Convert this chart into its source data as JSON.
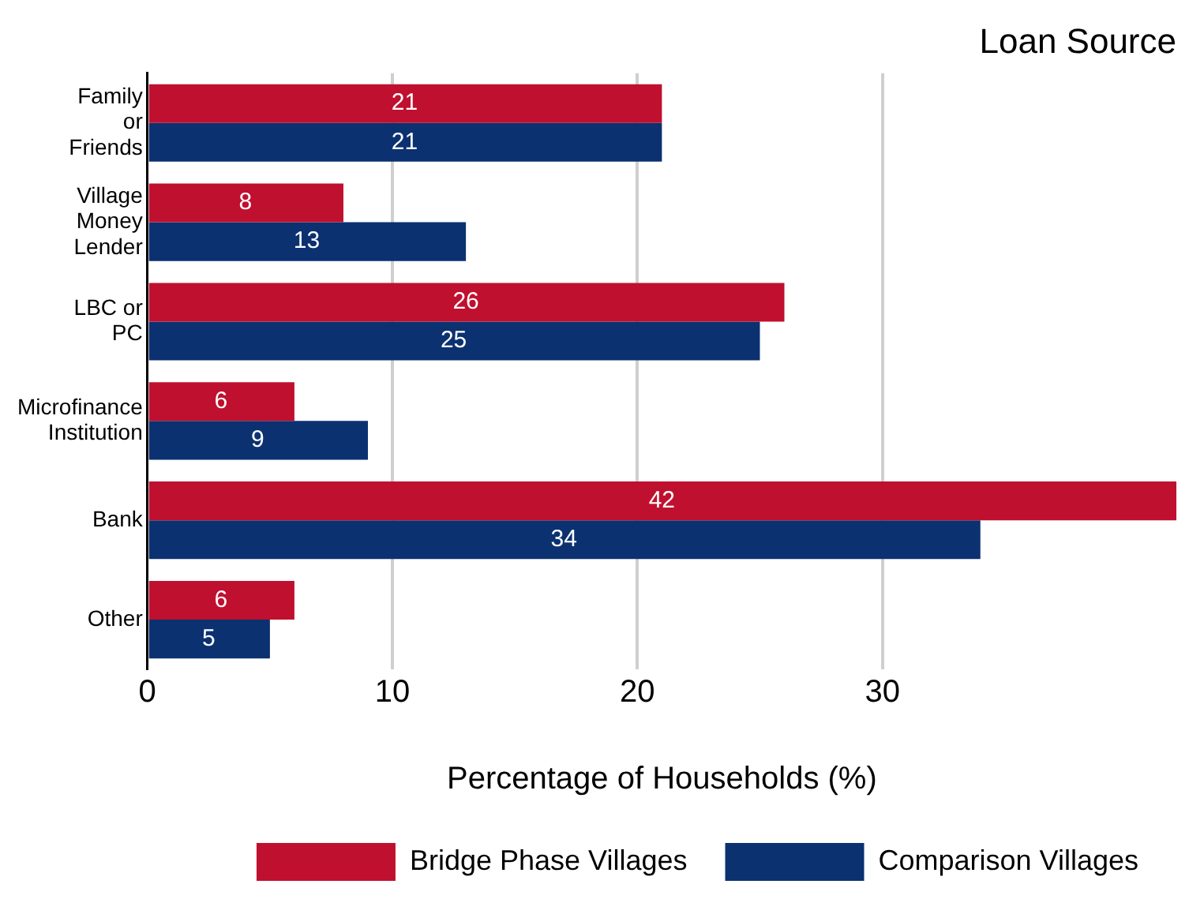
{
  "chart_data": {
    "type": "bar",
    "orientation": "horizontal",
    "title": "Loan Source",
    "xlabel": "Percentage of Households (%)",
    "categories": [
      "Family or Friends",
      "Village Money Lender",
      "LBC or PC",
      "Microfinance Institution",
      "Bank",
      "Other"
    ],
    "series": [
      {
        "name": "Bridge Phase Villages",
        "color": "#c0102f",
        "values": [
          21,
          8,
          26,
          6,
          42,
          6
        ]
      },
      {
        "name": "Comparison Villages",
        "color": "#0b3170",
        "values": [
          21,
          13,
          25,
          9,
          34,
          5
        ]
      }
    ],
    "xlim": [
      0,
      42
    ],
    "xticks": [
      0,
      10,
      20,
      30
    ],
    "grid": "x",
    "legend": "bottom",
    "data_labels": true
  }
}
